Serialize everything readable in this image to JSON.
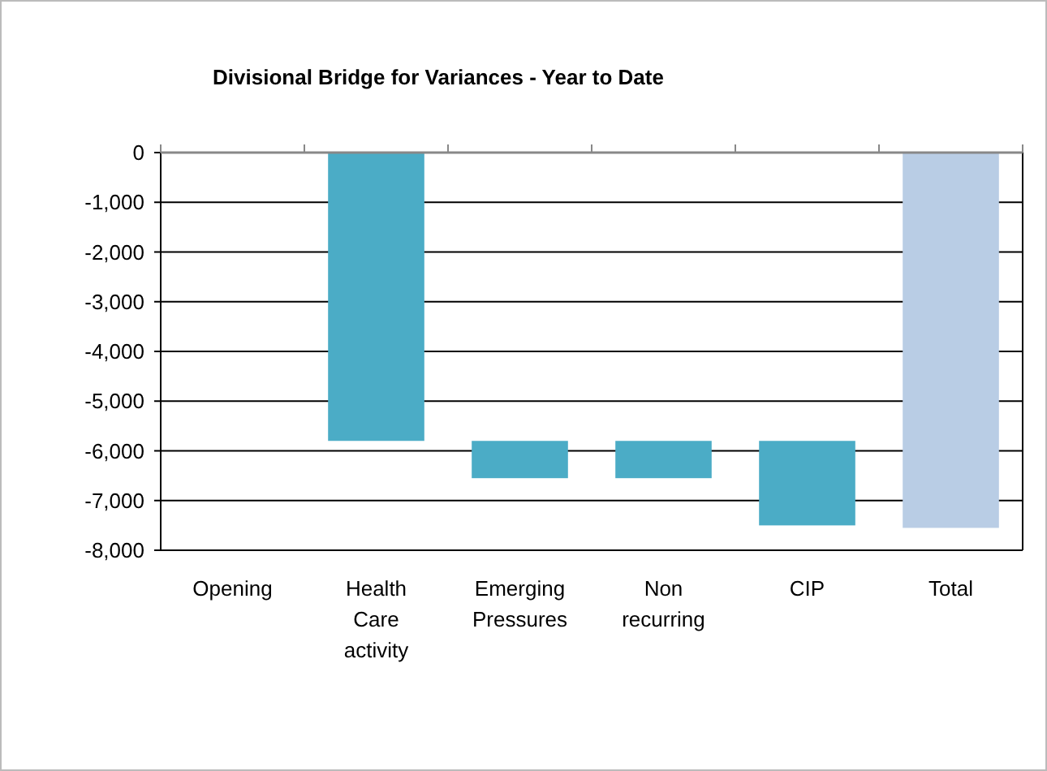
{
  "chart_data": {
    "type": "bar",
    "title": "Divisional Bridge for Variances - Year to Date",
    "categories": [
      "Opening",
      "Health Care activity",
      "Emerging Pressures",
      "Non recurring",
      "CIP",
      "Total"
    ],
    "values": [
      null,
      -5800,
      -750,
      -750,
      -1700,
      -7550
    ],
    "base": [
      null,
      0,
      -5800,
      -5800,
      -5800,
      0
    ],
    "colors": [
      null,
      "#4bacc6",
      "#4bacc6",
      "#4bacc6",
      "#4bacc6",
      "#b9cde5"
    ],
    "ylim": [
      -8000,
      0
    ],
    "yticks": [
      {
        "value": 0,
        "label": "0"
      },
      {
        "value": -1000,
        "label": "-1,000"
      },
      {
        "value": -2000,
        "label": "-2,000"
      },
      {
        "value": -3000,
        "label": "-3,000"
      },
      {
        "value": -4000,
        "label": "-4,000"
      },
      {
        "value": -5000,
        "label": "-5,000"
      },
      {
        "value": -6000,
        "label": "-6,000"
      },
      {
        "value": -7000,
        "label": "-7,000"
      },
      {
        "value": -8000,
        "label": "-8,000"
      }
    ],
    "grid": "y"
  }
}
